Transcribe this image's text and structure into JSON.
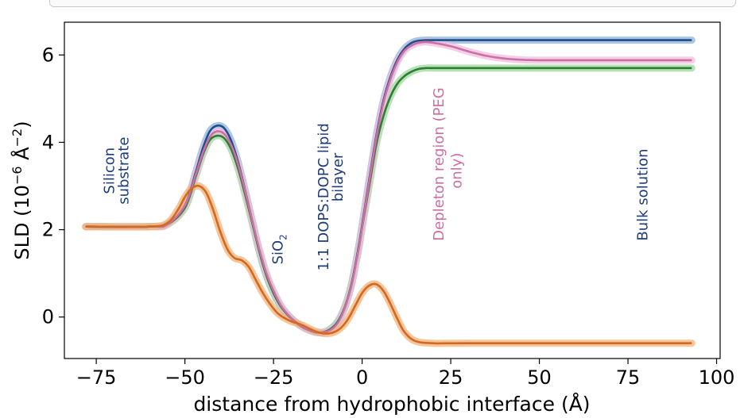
{
  "chart_data": {
    "type": "line",
    "xlabel": "distance from hydrophobic interface (Å)",
    "ylabel": "SLD (10⁻⁶ Å⁻²)",
    "xlim": [
      -84,
      101
    ],
    "ylim": [
      -0.95,
      6.75
    ],
    "xticks": [
      -75,
      -50,
      -25,
      0,
      25,
      50,
      75,
      100
    ],
    "xtick_labels": [
      "−75",
      "−50",
      "−25",
      "0",
      "25",
      "50",
      "75",
      "100"
    ],
    "yticks": [
      0,
      2,
      4,
      6
    ],
    "ytick_labels": [
      "0",
      "2",
      "4",
      "6"
    ],
    "grid": false,
    "series": [
      {
        "name": "dark blue",
        "color": "#1f4e8c",
        "band": "#8fb3d9",
        "x": [
          -78,
          -60,
          -55,
          -50,
          -47,
          -45,
          -43,
          -41,
          -39,
          -37,
          -35,
          -33,
          -31,
          -29,
          -27,
          -25,
          -23,
          -21,
          -19,
          -17,
          -15,
          -13,
          -11,
          -9,
          -7,
          -5,
          -3,
          -1,
          0,
          2,
          4,
          6,
          8,
          10,
          12,
          14,
          16,
          18,
          20,
          25,
          30,
          40,
          93
        ],
        "y": [
          2.07,
          2.07,
          2.12,
          2.55,
          3.3,
          3.85,
          4.25,
          4.38,
          4.33,
          4.05,
          3.55,
          2.9,
          2.2,
          1.5,
          0.95,
          0.55,
          0.25,
          0.05,
          -0.1,
          -0.22,
          -0.3,
          -0.35,
          -0.35,
          -0.28,
          -0.12,
          0.2,
          0.75,
          1.6,
          2.1,
          3.15,
          4.15,
          4.95,
          5.5,
          5.9,
          6.15,
          6.28,
          6.33,
          6.34,
          6.34,
          6.34,
          6.34,
          6.34,
          6.34
        ]
      },
      {
        "name": "green",
        "color": "#2e7d32",
        "band": "#9ed89e",
        "x": [
          -78,
          -60,
          -55,
          -50,
          -47,
          -45,
          -43,
          -41,
          -39,
          -37,
          -35,
          -33,
          -31,
          -29,
          -27,
          -25,
          -23,
          -21,
          -19,
          -17,
          -15,
          -13,
          -11,
          -9,
          -7,
          -5,
          -3,
          -1,
          0,
          2,
          4,
          6,
          8,
          10,
          12,
          14,
          16,
          18,
          20,
          25,
          30,
          40,
          93
        ],
        "y": [
          2.07,
          2.07,
          2.12,
          2.5,
          3.2,
          3.7,
          4.05,
          4.15,
          4.1,
          3.85,
          3.4,
          2.8,
          2.15,
          1.5,
          0.95,
          0.55,
          0.25,
          0.05,
          -0.1,
          -0.22,
          -0.3,
          -0.35,
          -0.35,
          -0.28,
          -0.12,
          0.2,
          0.75,
          1.55,
          2.05,
          3.0,
          3.95,
          4.6,
          5.05,
          5.35,
          5.52,
          5.62,
          5.68,
          5.7,
          5.7,
          5.7,
          5.7,
          5.7,
          5.7
        ]
      },
      {
        "name": "pink",
        "color": "#cc6fa6",
        "band": "#f0bedb",
        "x": [
          -78,
          -60,
          -55,
          -50,
          -47,
          -45,
          -43,
          -41,
          -39,
          -37,
          -35,
          -33,
          -31,
          -29,
          -27,
          -25,
          -23,
          -21,
          -19,
          -17,
          -15,
          -13,
          -11,
          -9,
          -7,
          -5,
          -3,
          -1,
          0,
          2,
          4,
          6,
          8,
          10,
          12,
          14,
          16,
          18,
          20,
          25,
          30,
          35,
          40,
          45,
          50,
          60,
          70,
          93
        ],
        "y": [
          2.07,
          2.07,
          2.12,
          2.55,
          3.25,
          3.75,
          4.12,
          4.25,
          4.2,
          3.95,
          3.5,
          2.88,
          2.2,
          1.55,
          1.0,
          0.6,
          0.28,
          0.06,
          -0.1,
          -0.22,
          -0.3,
          -0.35,
          -0.35,
          -0.3,
          -0.15,
          0.18,
          0.72,
          1.55,
          2.05,
          3.1,
          4.1,
          4.9,
          5.45,
          5.85,
          6.1,
          6.22,
          6.28,
          6.3,
          6.28,
          6.2,
          6.08,
          5.98,
          5.92,
          5.89,
          5.88,
          5.88,
          5.88,
          5.88
        ]
      },
      {
        "name": "orange",
        "color": "#d2691e",
        "band": "#f2b27a",
        "x": [
          -78,
          -60,
          -55,
          -52,
          -50,
          -48,
          -46,
          -44,
          -42,
          -40,
          -38,
          -36,
          -34,
          -32,
          -30,
          -28,
          -26,
          -24,
          -22,
          -20,
          -18,
          -16,
          -14,
          -12,
          -10,
          -8,
          -6,
          -4,
          -2,
          0,
          2,
          4,
          6,
          8,
          10,
          12,
          15,
          20,
          30,
          93
        ],
        "y": [
          2.07,
          2.07,
          2.15,
          2.45,
          2.75,
          2.95,
          3.0,
          2.85,
          2.45,
          1.95,
          1.55,
          1.35,
          1.3,
          1.15,
          0.85,
          0.55,
          0.3,
          0.1,
          -0.02,
          -0.1,
          -0.15,
          -0.22,
          -0.3,
          -0.36,
          -0.38,
          -0.35,
          -0.25,
          -0.05,
          0.25,
          0.55,
          0.72,
          0.75,
          0.6,
          0.3,
          -0.05,
          -0.35,
          -0.55,
          -0.6,
          -0.6,
          -0.6
        ]
      }
    ],
    "annotations": [
      {
        "text": "Silicon",
        "x": -70,
        "y": 3.35,
        "rotation": -90,
        "color": "#1f3c7a"
      },
      {
        "text": "substrate",
        "x": -66,
        "y": 3.35,
        "rotation": -90,
        "color": "#1f3c7a"
      },
      {
        "text": "SiO",
        "sub": "2",
        "x": -22.5,
        "y": 1.55,
        "rotation": -90,
        "color": "#1f3c7a"
      },
      {
        "text": "1:1 DOPS:DOPC lipid",
        "x": -9.5,
        "y": 2.75,
        "rotation": -90,
        "color": "#1f3c7a"
      },
      {
        "text": "bilayer",
        "x": -5.5,
        "y": 3.2,
        "rotation": -90,
        "color": "#1f3c7a"
      },
      {
        "text": "Depleton region (PEG",
        "x": 23,
        "y": 3.5,
        "rotation": -90,
        "color": "#cc6fa6"
      },
      {
        "text": "only)",
        "x": 28,
        "y": 3.35,
        "rotation": -90,
        "color": "#cc6fa6"
      },
      {
        "text": "Bulk solution",
        "x": 80.5,
        "y": 2.8,
        "rotation": -90,
        "color": "#1f3c7a"
      }
    ]
  }
}
